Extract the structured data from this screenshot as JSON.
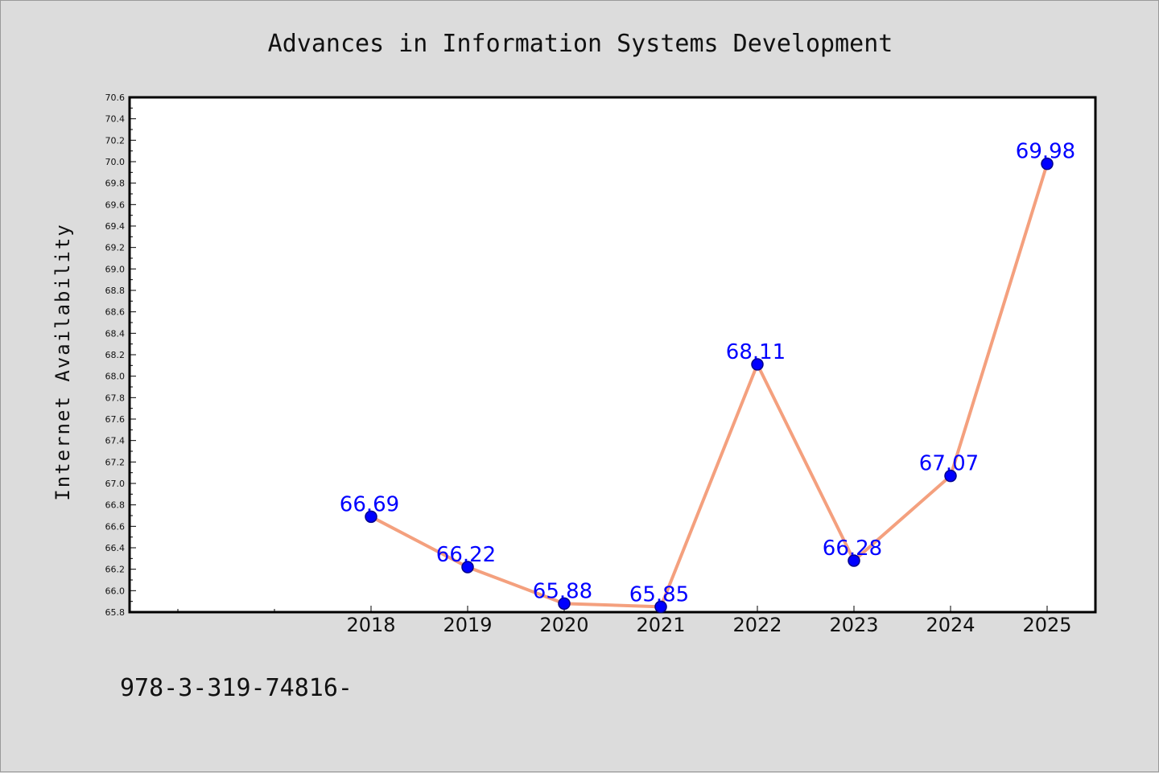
{
  "chart_data": {
    "type": "line",
    "title": "Advances in Information Systems Development",
    "ylabel": "Internet Availability",
    "xlabel": "",
    "x": [
      "2018",
      "2019",
      "2020",
      "2021",
      "2022",
      "2023",
      "2024",
      "2025"
    ],
    "series": [
      {
        "values": [
          66.69,
          66.22,
          65.88,
          65.85,
          68.11,
          66.28,
          67.07,
          69.98
        ],
        "data_labels": [
          "66.69",
          "66.22",
          "65.88",
          "65.85",
          "68.11",
          "66.28",
          "67.07",
          "69.98"
        ]
      }
    ],
    "ylim": [
      65.8,
      70.6
    ],
    "yticks": [
      "65.8",
      "66.0",
      "66.2",
      "66.4",
      "66.6",
      "66.8",
      "67.0",
      "67.2",
      "67.4",
      "67.6",
      "67.8",
      "68.0",
      "68.2",
      "68.4",
      "68.6",
      "68.8",
      "69.0",
      "69.2",
      "69.4",
      "69.6",
      "69.8",
      "70.0",
      "70.2",
      "70.4",
      "70.6"
    ],
    "grid": false,
    "legend": "none",
    "colors": {
      "line": "#f4a07e",
      "marker": "#0000ff",
      "marker_edge": "#00008b",
      "data_label": "#0000ff",
      "plot_background": "#ffffff",
      "page_background": "#dcdcdc"
    }
  },
  "footnote": "978-3-319-74816-"
}
